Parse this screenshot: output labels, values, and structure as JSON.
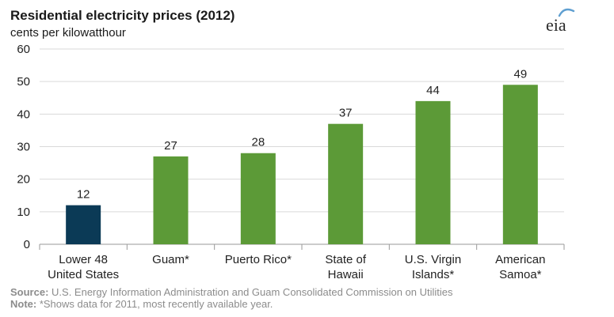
{
  "chart_data": {
    "type": "bar",
    "title": "Residential electricity prices (2012)",
    "ylabel": "cents per kilowatthour",
    "ylim": [
      0,
      60
    ],
    "yticks": [
      0,
      10,
      20,
      30,
      40,
      50,
      60
    ],
    "categories": [
      [
        "Lower 48",
        "United States"
      ],
      [
        "Guam*"
      ],
      [
        "Puerto Rico*"
      ],
      [
        "State of",
        "Hawaii"
      ],
      [
        "U.S. Virgin",
        "Islands*"
      ],
      [
        "American",
        "Samoa*"
      ]
    ],
    "values": [
      12,
      27,
      28,
      37,
      44,
      49
    ],
    "value_labels": [
      "12",
      "27",
      "28",
      "37",
      "44",
      "49"
    ],
    "bar_colors": [
      "#0b3a56",
      "#5c9a37",
      "#5c9a37",
      "#5c9a37",
      "#5c9a37",
      "#5c9a37"
    ],
    "grid": true
  },
  "logo": {
    "text": "eia",
    "arc_color": "#5f9fd1"
  },
  "footer": {
    "source_label": "Source:",
    "source_text": " U.S. Energy Information Administration and Guam Consolidated Commission on Utilities",
    "note_label": "Note:",
    "note_text": " *Shows data for 2011, most recently available year."
  }
}
